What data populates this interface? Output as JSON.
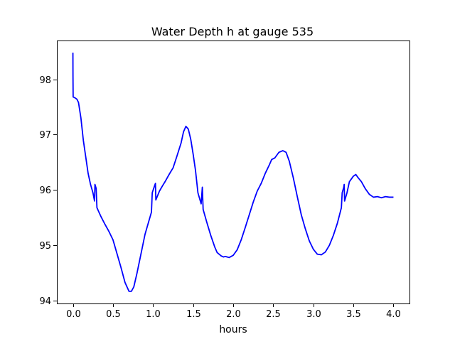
{
  "chart_data": {
    "type": "line",
    "title": "Water Depth h at gauge 535",
    "xlabel": "hours",
    "ylabel": "",
    "xlim": [
      -0.2,
      4.2
    ],
    "ylim": [
      93.95,
      98.7
    ],
    "x_ticks": [
      0.0,
      0.5,
      1.0,
      1.5,
      2.0,
      2.5,
      3.0,
      3.5,
      4.0
    ],
    "x_tick_labels": [
      "0.0",
      "0.5",
      "1.0",
      "1.5",
      "2.0",
      "2.5",
      "3.0",
      "3.5",
      "4.0"
    ],
    "y_ticks": [
      94,
      95,
      96,
      97,
      98
    ],
    "y_tick_labels": [
      "94",
      "95",
      "96",
      "97",
      "98"
    ],
    "grid": false,
    "line_color": "#0000ff",
    "series": [
      {
        "name": "",
        "points": [
          [
            0.0,
            98.48
          ],
          [
            0.001,
            98.05
          ],
          [
            0.003,
            97.68
          ],
          [
            0.02,
            97.67
          ],
          [
            0.05,
            97.64
          ],
          [
            0.07,
            97.58
          ],
          [
            0.1,
            97.3
          ],
          [
            0.13,
            96.9
          ],
          [
            0.16,
            96.6
          ],
          [
            0.19,
            96.3
          ],
          [
            0.22,
            96.1
          ],
          [
            0.25,
            95.95
          ],
          [
            0.27,
            95.8
          ],
          [
            0.275,
            96.1
          ],
          [
            0.29,
            96.03
          ],
          [
            0.3,
            95.68
          ],
          [
            0.35,
            95.52
          ],
          [
            0.4,
            95.38
          ],
          [
            0.45,
            95.25
          ],
          [
            0.5,
            95.1
          ],
          [
            0.55,
            94.85
          ],
          [
            0.6,
            94.6
          ],
          [
            0.65,
            94.33
          ],
          [
            0.7,
            94.17
          ],
          [
            0.73,
            94.17
          ],
          [
            0.76,
            94.25
          ],
          [
            0.8,
            94.5
          ],
          [
            0.85,
            94.85
          ],
          [
            0.9,
            95.2
          ],
          [
            0.95,
            95.45
          ],
          [
            0.98,
            95.6
          ],
          [
            0.99,
            95.95
          ],
          [
            1.02,
            96.08
          ],
          [
            1.03,
            96.12
          ],
          [
            1.035,
            95.82
          ],
          [
            1.08,
            95.98
          ],
          [
            1.12,
            96.08
          ],
          [
            1.15,
            96.15
          ],
          [
            1.2,
            96.28
          ],
          [
            1.25,
            96.4
          ],
          [
            1.3,
            96.62
          ],
          [
            1.35,
            96.85
          ],
          [
            1.38,
            97.05
          ],
          [
            1.41,
            97.15
          ],
          [
            1.44,
            97.1
          ],
          [
            1.47,
            96.92
          ],
          [
            1.5,
            96.65
          ],
          [
            1.53,
            96.35
          ],
          [
            1.56,
            95.95
          ],
          [
            1.6,
            95.75
          ],
          [
            1.615,
            96.05
          ],
          [
            1.625,
            95.65
          ],
          [
            1.67,
            95.42
          ],
          [
            1.72,
            95.18
          ],
          [
            1.77,
            94.97
          ],
          [
            1.8,
            94.87
          ],
          [
            1.85,
            94.81
          ],
          [
            1.88,
            94.79
          ],
          [
            1.9,
            94.8
          ],
          [
            1.95,
            94.78
          ],
          [
            2.0,
            94.82
          ],
          [
            2.05,
            94.92
          ],
          [
            2.1,
            95.1
          ],
          [
            2.15,
            95.32
          ],
          [
            2.2,
            95.55
          ],
          [
            2.25,
            95.78
          ],
          [
            2.3,
            95.98
          ],
          [
            2.35,
            96.12
          ],
          [
            2.4,
            96.3
          ],
          [
            2.45,
            96.45
          ],
          [
            2.48,
            96.55
          ],
          [
            2.52,
            96.58
          ],
          [
            2.57,
            96.68
          ],
          [
            2.62,
            96.71
          ],
          [
            2.66,
            96.68
          ],
          [
            2.7,
            96.52
          ],
          [
            2.75,
            96.22
          ],
          [
            2.8,
            95.88
          ],
          [
            2.85,
            95.55
          ],
          [
            2.9,
            95.3
          ],
          [
            2.95,
            95.08
          ],
          [
            3.0,
            94.93
          ],
          [
            3.05,
            94.84
          ],
          [
            3.1,
            94.83
          ],
          [
            3.15,
            94.88
          ],
          [
            3.2,
            95.0
          ],
          [
            3.25,
            95.18
          ],
          [
            3.3,
            95.4
          ],
          [
            3.35,
            95.68
          ],
          [
            3.36,
            95.95
          ],
          [
            3.38,
            96.05
          ],
          [
            3.385,
            96.1
          ],
          [
            3.39,
            95.8
          ],
          [
            3.42,
            95.95
          ],
          [
            3.45,
            96.15
          ],
          [
            3.5,
            96.25
          ],
          [
            3.53,
            96.28
          ],
          [
            3.56,
            96.22
          ],
          [
            3.6,
            96.15
          ],
          [
            3.65,
            96.02
          ],
          [
            3.7,
            95.92
          ],
          [
            3.75,
            95.87
          ],
          [
            3.8,
            95.88
          ],
          [
            3.85,
            95.86
          ],
          [
            3.9,
            95.88
          ],
          [
            3.95,
            95.87
          ],
          [
            4.0,
            95.87
          ]
        ]
      }
    ]
  }
}
